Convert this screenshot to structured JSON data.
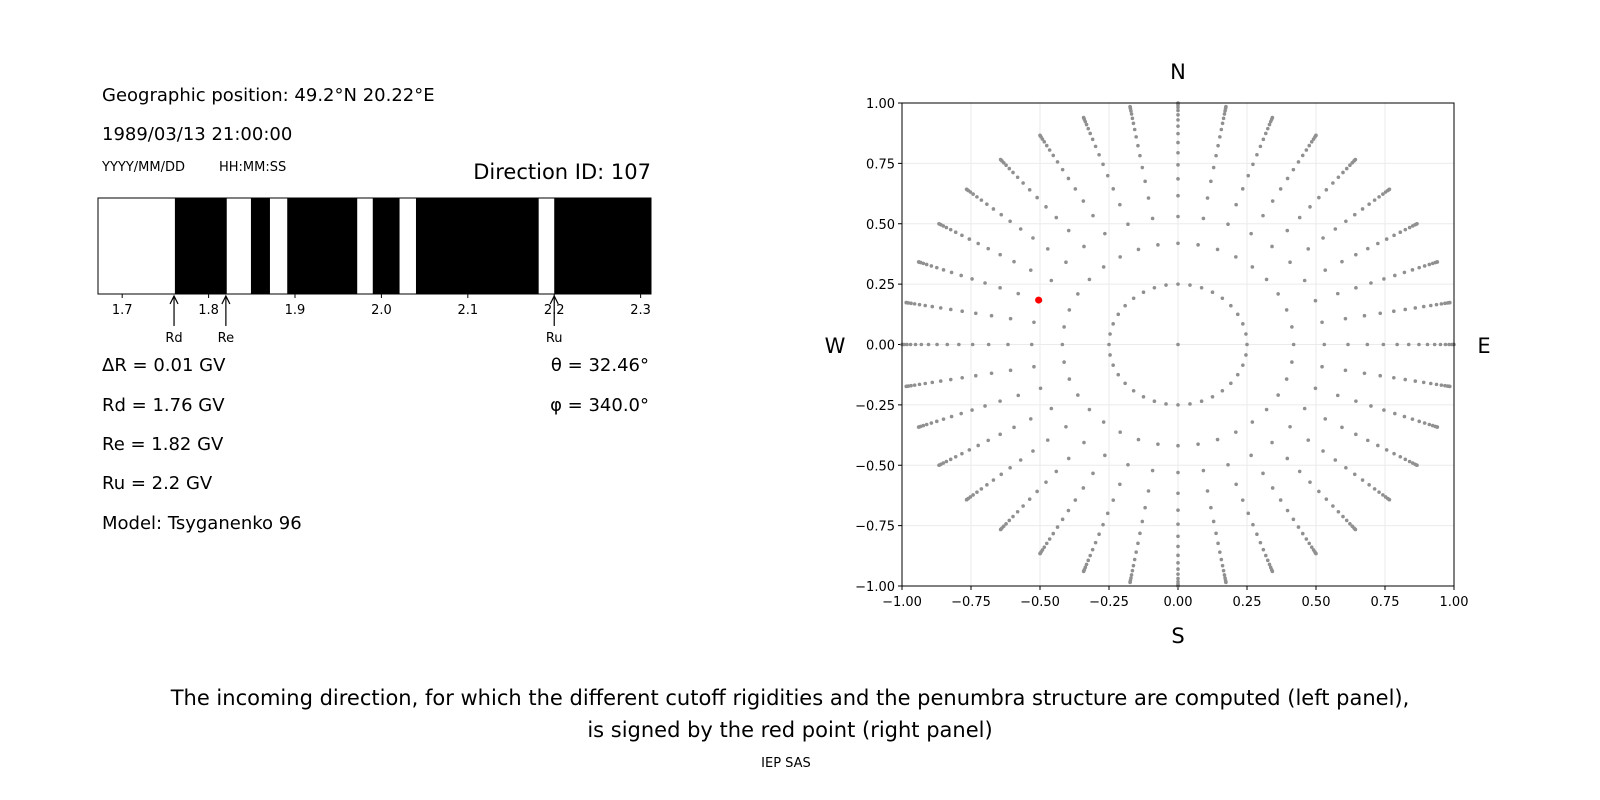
{
  "left_panel": {
    "geo_position": "Geographic position: 49.2°N 20.22°E",
    "datetime": "1989/03/13 21:00:00",
    "date_format": "YYYY/MM/DD",
    "time_format": "HH:MM:SS",
    "direction_id": "Direction ID: 107",
    "delta_r": "ΔR = 0.01 GV",
    "rd": "Rd = 1.76 GV",
    "re": "Re = 1.82 GV",
    "ru": "Ru = 2.2 GV",
    "model": "Model: Tsyganenko 96",
    "theta": "θ = 32.46°",
    "phi": "φ = 340.0°"
  },
  "chart_data": [
    {
      "type": "penumbra-bar",
      "xlim": [
        1.672,
        2.312
      ],
      "ticks": [
        1.7,
        1.8,
        1.9,
        2.0,
        2.1,
        2.2,
        2.3
      ],
      "tick_labels": [
        "1.7",
        "1.8",
        "1.9",
        "2.0",
        "2.1",
        "2.2",
        "2.3"
      ],
      "allowed_intervals": [
        [
          1.672,
          1.761
        ],
        [
          1.821,
          1.849
        ],
        [
          1.871,
          1.891
        ],
        [
          1.972,
          1.99
        ],
        [
          2.021,
          2.04
        ],
        [
          2.182,
          2.2
        ]
      ],
      "forbidden_color": "#000000",
      "allowed_color": "#ffffff",
      "markers": [
        {
          "label": "Rd",
          "value": 1.76
        },
        {
          "label": "Re",
          "value": 1.82
        },
        {
          "label": "Ru",
          "value": 2.2
        }
      ]
    },
    {
      "type": "scatter",
      "xlim": [
        -1,
        1
      ],
      "ylim": [
        -1,
        1
      ],
      "ticks": [
        -1.0,
        -0.75,
        -0.5,
        -0.25,
        0.0,
        0.25,
        0.5,
        0.75,
        1.0
      ],
      "tick_labels": [
        "−1.00",
        "−0.75",
        "−0.50",
        "−0.25",
        "0.00",
        "0.25",
        "0.50",
        "0.75",
        "1.00"
      ],
      "grid": true,
      "compass": {
        "top": "N",
        "bottom": "S",
        "left": "W",
        "right": "E"
      },
      "directions": {
        "color": "#909090",
        "center": [
          0,
          0
        ],
        "ring_radius": 0.25,
        "azimuth_step_deg": 10,
        "spoke_radii": [
          0.419,
          0.53,
          0.616,
          0.686,
          0.744,
          0.794,
          0.836,
          0.873,
          0.904,
          0.93,
          0.951,
          0.969,
          0.982,
          0.992,
          0.998,
          1.0
        ]
      },
      "selected_point": {
        "x": -0.505,
        "y": 0.184,
        "color": "#ff0000"
      }
    }
  ],
  "caption": {
    "line1": "The incoming direction, for which the different cutoff rigidities and the penumbra structure are computed (left panel),",
    "line2": "is signed by the red point (right panel)",
    "credit": "IEP SAS"
  }
}
